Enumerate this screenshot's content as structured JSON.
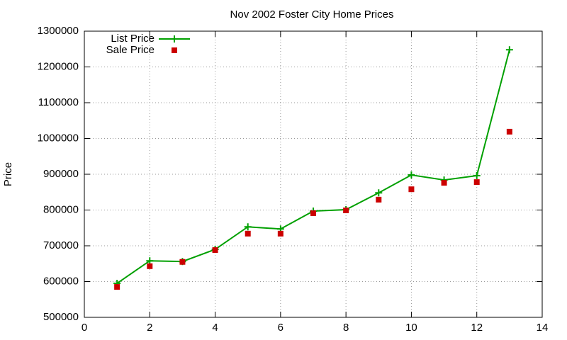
{
  "chart_data": {
    "type": "line",
    "title": "Nov 2002 Foster City Home Prices",
    "ylabel": "Price",
    "x": [
      1,
      2,
      3,
      4,
      5,
      6,
      7,
      8,
      9,
      10,
      11,
      12,
      13
    ],
    "series": [
      {
        "name": "List Price",
        "color": "#00a000",
        "line": true,
        "marker": "plus",
        "values": [
          595000,
          658000,
          656000,
          690000,
          753000,
          747000,
          797000,
          801000,
          848000,
          898000,
          884000,
          896000,
          1248000
        ]
      },
      {
        "name": "Sale Price",
        "color": "#cc0000",
        "line": false,
        "marker": "square",
        "values": [
          585000,
          643000,
          655000,
          688000,
          734000,
          734000,
          791000,
          799000,
          829000,
          858000,
          876000,
          878000,
          1019000
        ]
      }
    ],
    "xlim": [
      0,
      14
    ],
    "xticks": [
      0,
      2,
      4,
      6,
      8,
      10,
      12,
      14
    ],
    "ylim": [
      500000,
      1300000
    ],
    "yticks": [
      500000,
      600000,
      700000,
      800000,
      900000,
      1000000,
      1100000,
      1200000,
      1300000
    ],
    "grid": true,
    "legend": "top-left"
  }
}
